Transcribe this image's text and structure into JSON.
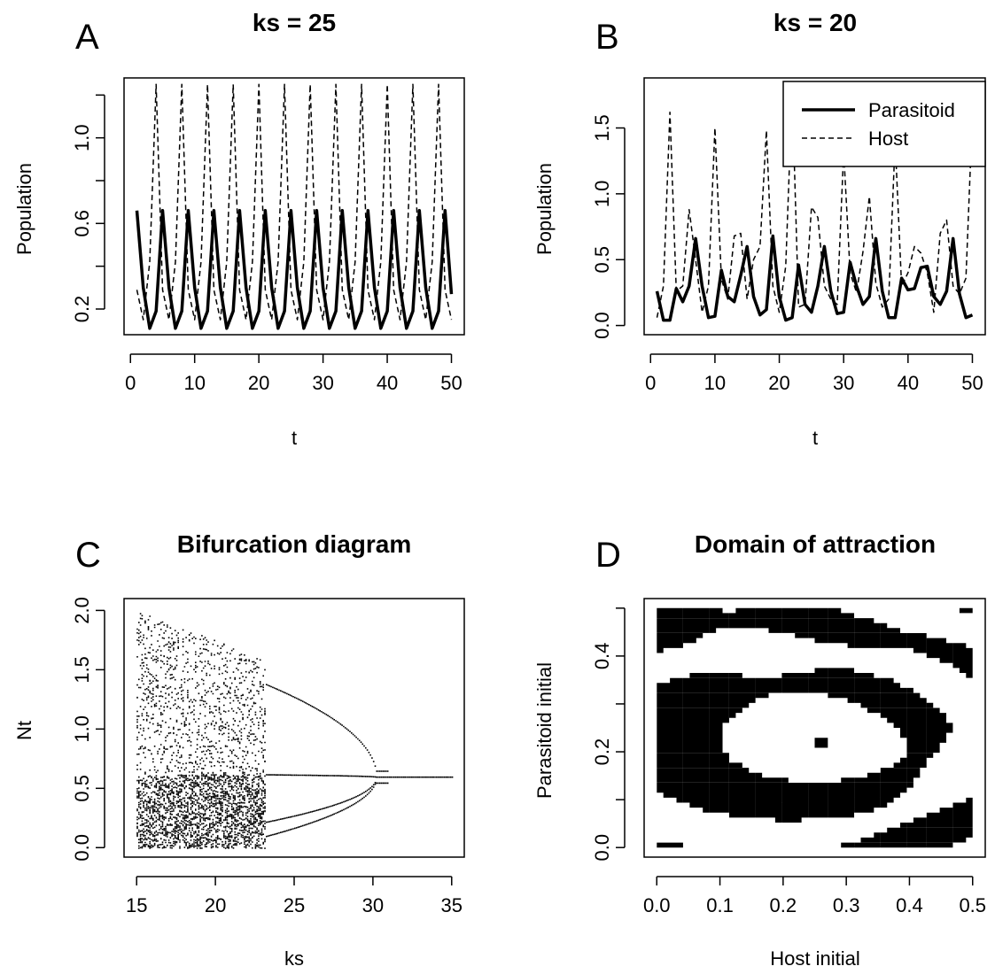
{
  "chart_data": [
    {
      "panel": "A",
      "type": "line",
      "title": "ks =  25",
      "xlabel": "t",
      "ylabel": "Population",
      "xlim": [
        1,
        50
      ],
      "ylim": [
        0.1,
        1.25
      ],
      "xticks": [
        "0",
        "10",
        "20",
        "30",
        "40",
        "50"
      ],
      "yticks": [
        "0.2",
        "0.6",
        "1.0"
      ],
      "series": [
        {
          "style": "solid",
          "values": [
            0.66,
            0.3,
            0.11,
            0.19,
            0.66,
            0.3,
            0.11,
            0.19,
            0.66,
            0.3,
            0.11,
            0.19,
            0.66,
            0.3,
            0.11,
            0.19,
            0.66,
            0.3,
            0.11,
            0.19,
            0.66,
            0.3,
            0.11,
            0.19,
            0.66,
            0.3,
            0.11,
            0.19,
            0.66,
            0.3,
            0.11,
            0.19,
            0.66,
            0.3,
            0.11,
            0.19,
            0.66,
            0.3,
            0.11,
            0.19,
            0.66,
            0.3,
            0.11,
            0.19,
            0.66,
            0.3,
            0.11,
            0.19,
            0.66,
            0.27
          ]
        },
        {
          "style": "dashed",
          "values": [
            0.29,
            0.15,
            0.42,
            1.25,
            0.29,
            0.15,
            0.42,
            1.25,
            0.29,
            0.15,
            0.42,
            1.25,
            0.29,
            0.15,
            0.42,
            1.25,
            0.29,
            0.15,
            0.42,
            1.25,
            0.29,
            0.15,
            0.42,
            1.25,
            0.29,
            0.15,
            0.42,
            1.25,
            0.29,
            0.15,
            0.42,
            1.25,
            0.29,
            0.15,
            0.42,
            1.25,
            0.29,
            0.15,
            0.42,
            1.25,
            0.29,
            0.15,
            0.42,
            1.25,
            0.29,
            0.15,
            0.42,
            1.25,
            0.29,
            0.15
          ]
        }
      ]
    },
    {
      "panel": "B",
      "type": "line",
      "title": "ks =  20",
      "xlabel": "t",
      "ylabel": "Population",
      "xlim": [
        1,
        50
      ],
      "ylim": [
        0,
        1.8
      ],
      "xticks": [
        "0",
        "10",
        "20",
        "30",
        "40",
        "50"
      ],
      "yticks": [
        "0.0",
        "0.5",
        "1.0",
        "1.5"
      ],
      "legend": {
        "position": "top-right"
      },
      "series": [
        {
          "name": "Parasitoid",
          "style": "solid",
          "values": [
            0.26,
            0.04,
            0.04,
            0.28,
            0.18,
            0.3,
            0.66,
            0.3,
            0.06,
            0.07,
            0.42,
            0.22,
            0.18,
            0.38,
            0.6,
            0.22,
            0.08,
            0.12,
            0.68,
            0.22,
            0.04,
            0.06,
            0.46,
            0.16,
            0.1,
            0.3,
            0.6,
            0.26,
            0.09,
            0.1,
            0.48,
            0.3,
            0.16,
            0.22,
            0.66,
            0.26,
            0.06,
            0.06,
            0.36,
            0.27,
            0.28,
            0.44,
            0.45,
            0.22,
            0.16,
            0.26,
            0.66,
            0.24,
            0.06,
            0.08
          ]
        },
        {
          "name": "Host",
          "style": "dashed",
          "values": [
            0.06,
            0.3,
            1.62,
            0.26,
            0.3,
            0.88,
            0.5,
            0.1,
            0.3,
            1.5,
            0.35,
            0.2,
            0.68,
            0.7,
            0.2,
            0.5,
            0.6,
            1.48,
            0.3,
            0.1,
            0.45,
            1.78,
            0.14,
            0.16,
            0.9,
            0.82,
            0.3,
            0.2,
            0.16,
            1.32,
            0.4,
            0.25,
            0.56,
            0.98,
            0.32,
            0.14,
            0.2,
            1.4,
            0.3,
            0.4,
            0.6,
            0.55,
            0.4,
            0.1,
            0.7,
            0.8,
            0.3,
            0.24,
            0.36,
            1.6
          ]
        }
      ]
    },
    {
      "panel": "C",
      "type": "scatter",
      "title": "Bifurcation diagram",
      "xlabel": "ks",
      "ylabel": "Nt",
      "xlim": [
        15,
        35
      ],
      "ylim": [
        0,
        2.05
      ],
      "xticks": [
        "15",
        "20",
        "25",
        "30",
        "35"
      ],
      "yticks": [
        "0.0",
        "0.5",
        "1.0",
        "1.5",
        "2.0"
      ],
      "note_values": "x: ks from 15 to 35; y: population values Nt of the attractor (dense chaotic band 15–23, period-4 branches 23–30, period-doubling collapse near 30, equilibrium ~0.6 to 35)"
    },
    {
      "panel": "D",
      "type": "heatmap",
      "title": "Domain of attraction",
      "xlabel": "Host initial",
      "ylabel": "Parasitoid initial",
      "xlim": [
        0,
        0.5
      ],
      "ylim": [
        0,
        0.5
      ],
      "xticks": [
        "0.0",
        "0.1",
        "0.2",
        "0.3",
        "0.4",
        "0.5"
      ],
      "yticks": [
        "0.0",
        "0.2",
        "0.4"
      ],
      "colors": [
        "#ffffff",
        "#000000"
      ]
    }
  ],
  "panel_letters": [
    "A",
    "B",
    "C",
    "D"
  ]
}
